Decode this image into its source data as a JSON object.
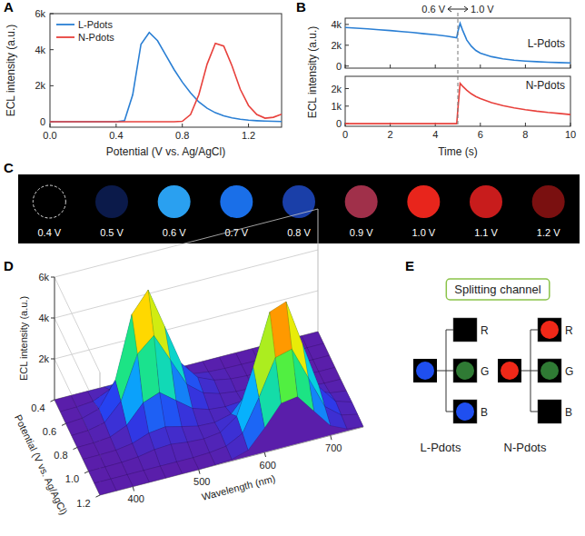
{
  "panel_labels": [
    "A",
    "B",
    "C",
    "D",
    "E"
  ],
  "chart_data": [
    {
      "type": "line",
      "x_label": "Potential (V vs. Ag/AgCl)",
      "y_label": "ECL intensity (a.u.)",
      "legend": "upper left",
      "x": [
        0,
        0.05,
        0.1,
        0.15,
        0.2,
        0.25,
        0.3,
        0.35,
        0.4,
        0.45,
        0.5,
        0.55,
        0.6,
        0.65,
        0.7,
        0.75,
        0.8,
        0.85,
        0.9,
        0.95,
        1.0,
        1.05,
        1.1,
        1.15,
        1.2,
        1.25,
        1.3,
        1.35,
        1.4
      ],
      "series": [
        {
          "name": "L-Pdots",
          "color": "#2a7fd4",
          "values": [
            0,
            0,
            0,
            0,
            0,
            0,
            0,
            0,
            0,
            60,
            1500,
            4300,
            4950,
            4500,
            3700,
            2900,
            2200,
            1600,
            1100,
            750,
            500,
            330,
            220,
            140,
            90,
            60,
            40,
            30,
            20
          ]
        },
        {
          "name": "N-Pdots",
          "color": "#e8413c",
          "values": [
            0,
            0,
            0,
            0,
            0,
            0,
            0,
            0,
            0,
            0,
            0,
            0,
            0,
            0,
            0,
            0,
            30,
            400,
            1500,
            3200,
            4350,
            4200,
            3100,
            1800,
            900,
            400,
            200,
            250,
            420
          ]
        }
      ],
      "xlim": [
        0,
        1.4
      ],
      "xticks": [
        {
          "value": 0,
          "label": "0.0"
        },
        0.4,
        0.8,
        1.2
      ],
      "ylim": [
        -300,
        6000
      ],
      "yticks": [
        0,
        {
          "value": 2000,
          "label": "2k"
        },
        {
          "value": 4000,
          "label": "4k"
        },
        {
          "value": 6000,
          "label": "6k"
        }
      ]
    },
    {
      "type": "line",
      "x_label": "Time (s)",
      "y_label": "ECL intensity (a.u.)",
      "annotations": [
        "0.6 V",
        "1.0 V"
      ],
      "marker_line": {
        "x": 5,
        "line_style": "dashed"
      },
      "x": [
        0,
        0.5,
        1,
        1.5,
        2,
        2.5,
        3,
        3.5,
        4,
        4.5,
        4.95,
        5,
        5.1,
        5.2,
        5.4,
        5.6,
        5.8,
        6,
        6.5,
        7,
        7.5,
        8,
        8.5,
        9,
        9.5,
        10
      ],
      "xlim": [
        0,
        10
      ],
      "xticks": [
        0,
        2,
        4,
        6,
        8,
        10
      ],
      "subplots": [
        {
          "ylim": [
            -200,
            4600
          ],
          "yticks": [
            0,
            {
              "value": 2000,
              "label": "2k"
            },
            {
              "value": 4000,
              "label": "4k"
            }
          ],
          "series": [
            {
              "name": "L-Pdots",
              "color": "#2a7fd4",
              "values": [
                3700,
                3640,
                3570,
                3490,
                3410,
                3320,
                3220,
                3110,
                3000,
                2880,
                2720,
                3300,
                4100,
                3500,
                2500,
                1900,
                1500,
                1250,
                900,
                700,
                560,
                480,
                420,
                370,
                330,
                300
              ]
            }
          ]
        },
        {
          "ylim": [
            -150,
            2700
          ],
          "yticks": [
            0,
            {
              "value": 1000,
              "label": "1k"
            },
            {
              "value": 2000,
              "label": "2k"
            }
          ],
          "series": [
            {
              "name": "N-Pdots",
              "color": "#e8413c",
              "values": [
                0,
                0,
                0,
                0,
                0,
                0,
                0,
                0,
                0,
                0,
                0,
                800,
                2300,
                2150,
                1900,
                1700,
                1550,
                1430,
                1200,
                1030,
                900,
                800,
                710,
                640,
                580,
                520
              ]
            }
          ]
        }
      ]
    },
    {
      "type": "surface",
      "x_label": "Wavelength (nm)",
      "y_label": "Potential (V vs. Ag/AgCl)",
      "z_label": "ECL intensity (a.u.)",
      "x": [
        350,
        375,
        400,
        425,
        450,
        475,
        500,
        525,
        550,
        575,
        600,
        625,
        650,
        675,
        700,
        725,
        750
      ],
      "y": [
        0.4,
        0.5,
        0.6,
        0.7,
        0.8,
        0.9,
        1.0,
        1.1,
        1.2
      ],
      "z": [
        [
          0,
          0,
          0,
          0,
          0,
          0,
          0,
          0,
          0,
          0,
          0,
          0,
          0,
          0,
          0,
          0,
          0
        ],
        [
          0,
          15,
          90,
          450,
          1350,
          1650,
          1050,
          450,
          180,
          75,
          30,
          15,
          9,
          6,
          0,
          0,
          0
        ],
        [
          0,
          50,
          300,
          1500,
          4500,
          5500,
          3500,
          1500,
          600,
          250,
          100,
          50,
          30,
          20,
          0,
          0,
          0
        ],
        [
          0,
          35,
          210,
          1050,
          3150,
          3850,
          2450,
          1050,
          420,
          175,
          70,
          35,
          21,
          14,
          0,
          0,
          0
        ],
        [
          0,
          15,
          90,
          450,
          1350,
          1650,
          1050,
          453,
          190,
          115,
          180,
          290,
          299,
          181,
          60,
          15,
          3
        ],
        [
          0,
          5,
          30,
          150,
          450,
          550,
          350,
          170,
          140,
          345,
          1210,
          2205,
          2323,
          1402,
          480,
          120,
          20
        ],
        [
          0,
          3,
          15,
          75,
          225,
          275,
          175,
          125,
          230,
          813,
          3005,
          5503,
          5802,
          3501,
          1200,
          300,
          50
        ],
        [
          0,
          0,
          0,
          0,
          0,
          0,
          0,
          35,
          140,
          560,
          2100,
          3850,
          4060,
          2450,
          840,
          210,
          35
        ],
        [
          0,
          0,
          0,
          0,
          0,
          0,
          0,
          20,
          80,
          320,
          1200,
          2200,
          2320,
          1400,
          480,
          120,
          20
        ]
      ],
      "xlim": [
        350,
        750
      ],
      "xticks": [
        400,
        500,
        600,
        700
      ],
      "ylim": [
        0.4,
        1.2
      ],
      "yticks": [
        0.4,
        0.6,
        0.8,
        {
          "value": 1,
          "label": "1.0"
        },
        1.2
      ],
      "zlim": [
        0,
        6000
      ],
      "zticks": [
        {
          "value": 2000,
          "label": "2k"
        },
        {
          "value": 4000,
          "label": "4k"
        },
        {
          "value": 6000,
          "label": "6k"
        }
      ]
    }
  ],
  "image_strip": {
    "labels": [
      "0.4 V",
      "0.5 V",
      "0.6 V",
      "0.7 V",
      "0.8 V",
      "0.9 V",
      "1.0 V",
      "1.1 V",
      "1.2 V"
    ],
    "colors": [
      "#000000",
      "#0b1a4a",
      "#2aa0f0",
      "#1a6fe8",
      "#1a3fa8",
      "#a0304a",
      "#e8251c",
      "#c81c1c",
      "#7a1010"
    ]
  },
  "diagram": {
    "title": "Splitting channel",
    "groups": [
      {
        "name": "L-Pdots",
        "color": "#1f4ff0",
        "channels": [
          {
            "label": "R",
            "color": "#000000"
          },
          {
            "label": "G",
            "color": "#2f7a34"
          },
          {
            "label": "B",
            "color": "#1f4ff0"
          }
        ]
      },
      {
        "name": "N-Pdots",
        "color": "#f02818",
        "channels": [
          {
            "label": "R",
            "color": "#f02818"
          },
          {
            "label": "G",
            "color": "#2f7a34"
          },
          {
            "label": "B",
            "color": "#000000"
          }
        ]
      }
    ]
  }
}
